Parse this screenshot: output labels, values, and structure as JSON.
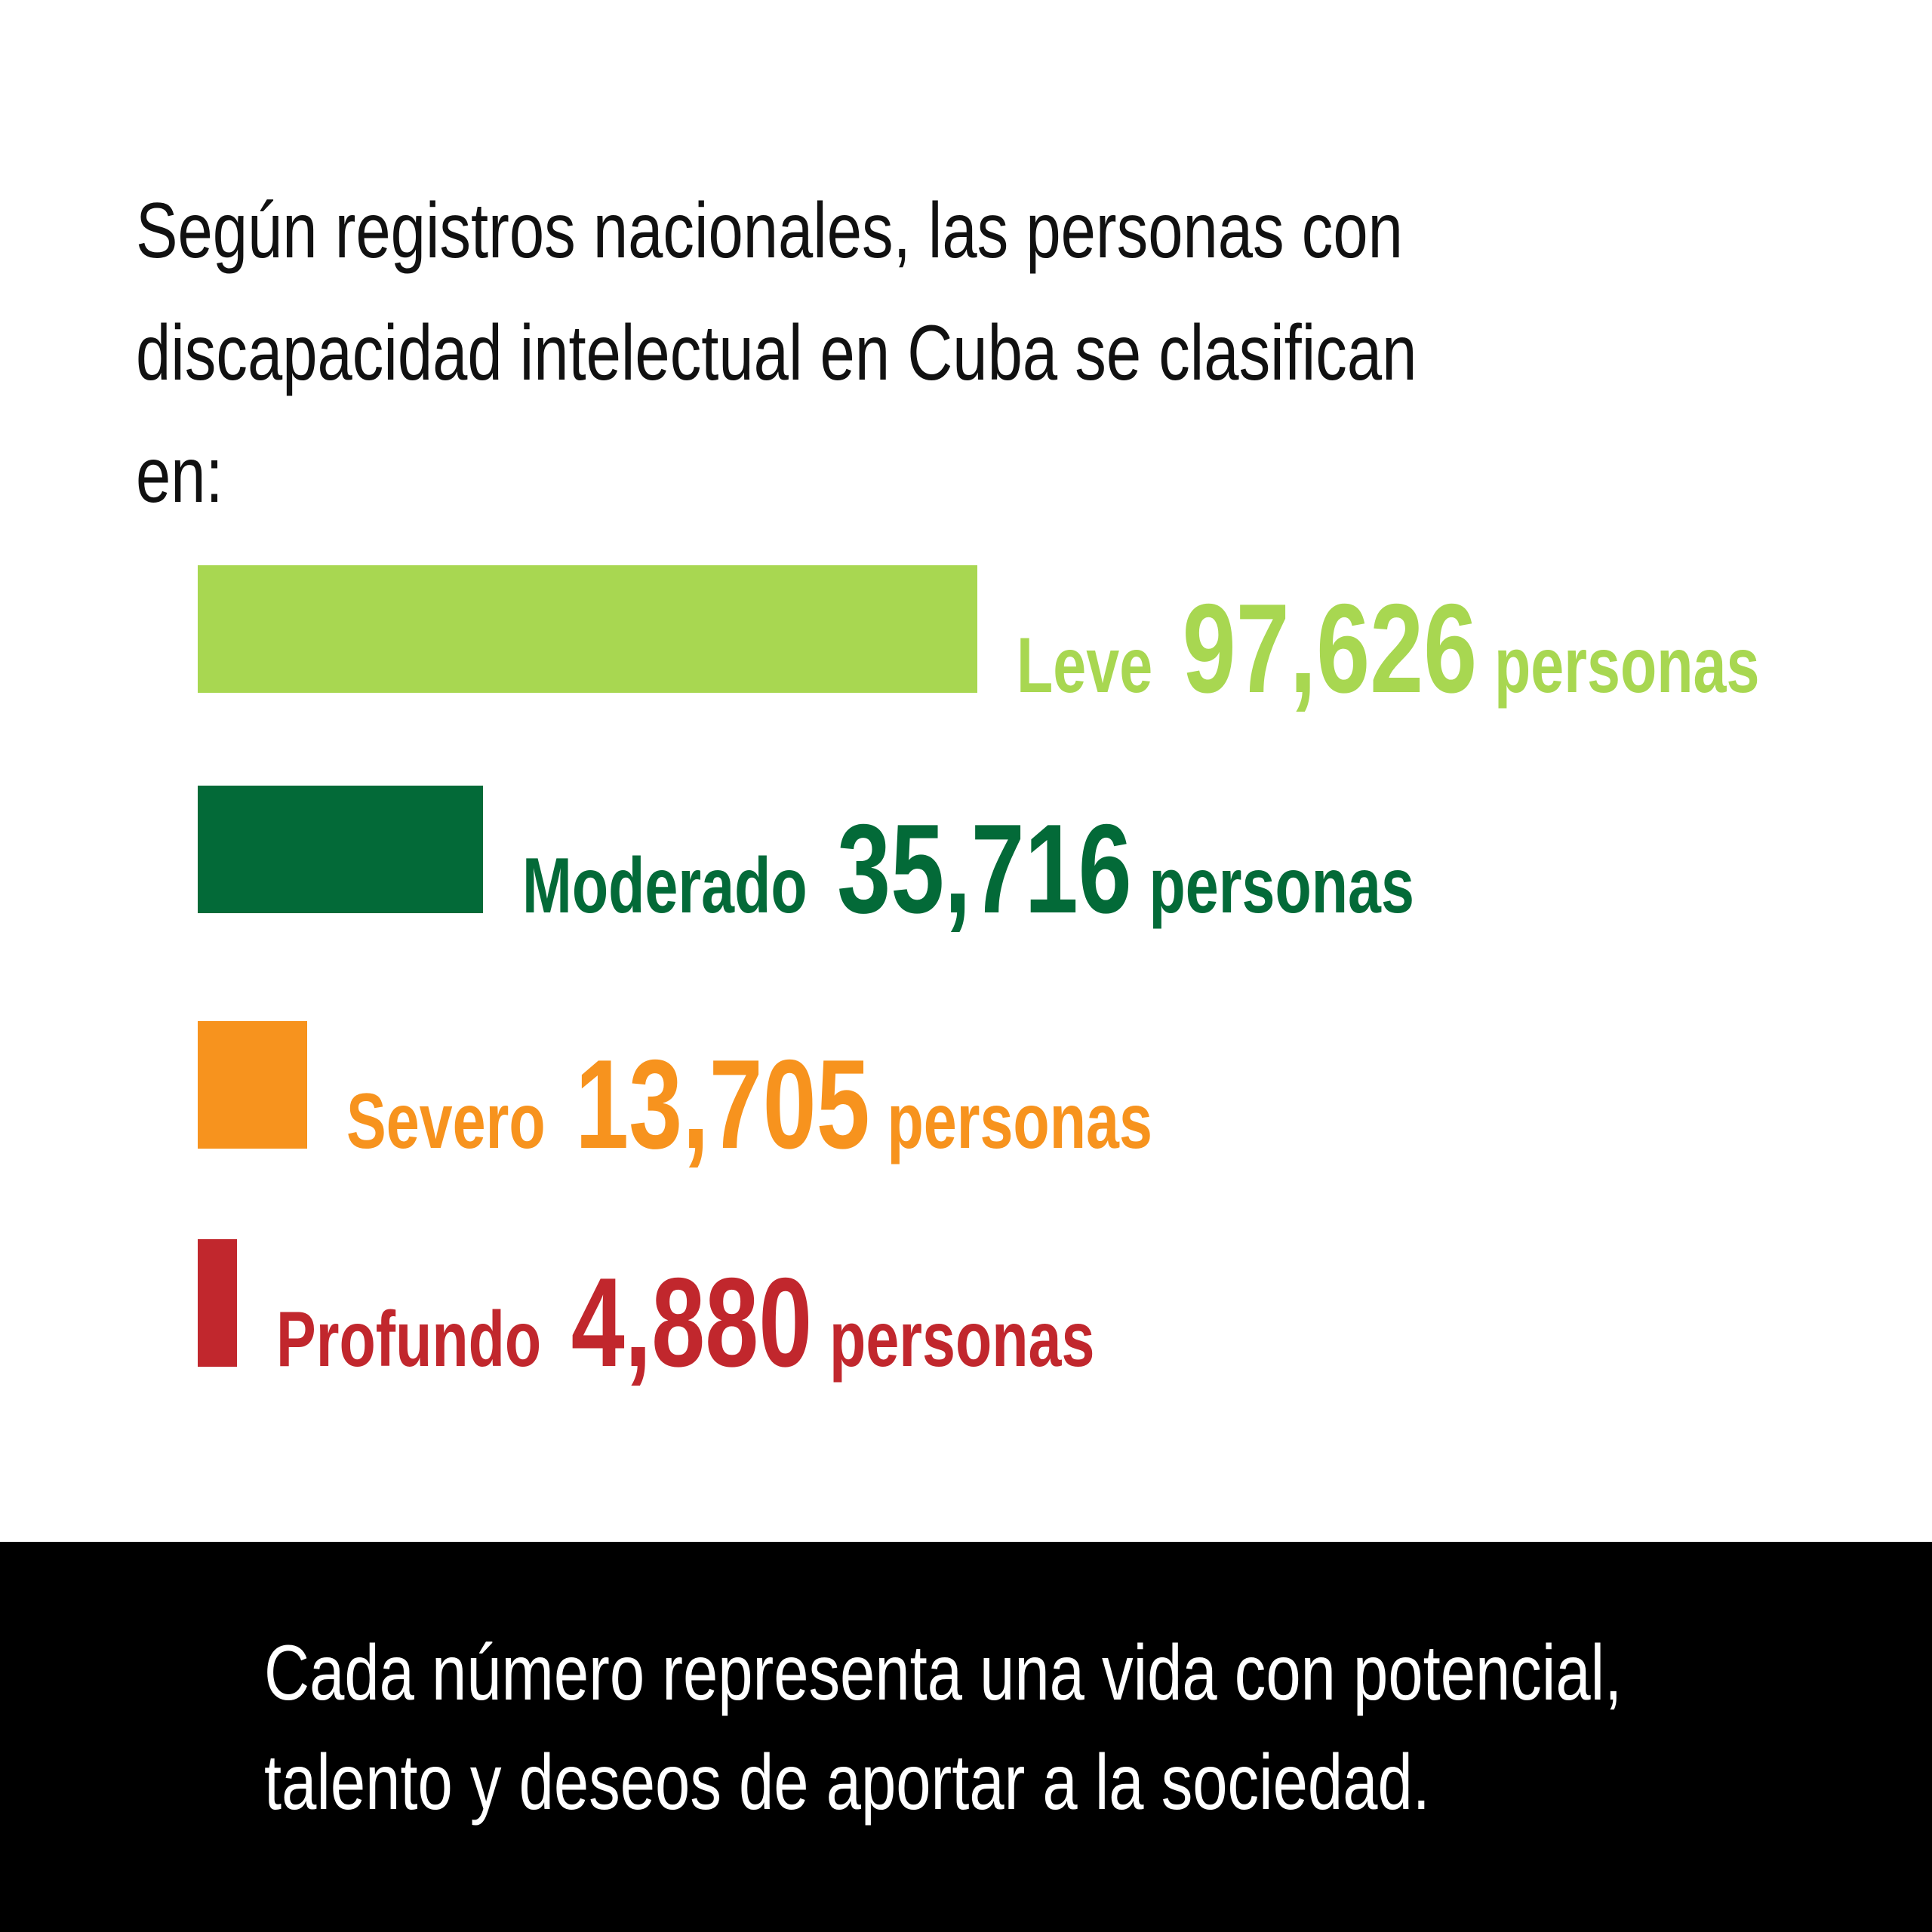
{
  "headline": "Según registros nacionales, las personas con discapacidad intelectual en Cuba se clasifican en:",
  "chart_data": {
    "type": "bar",
    "orientation": "horizontal",
    "title": "",
    "xlabel": "",
    "ylabel": "",
    "unit_label": "personas",
    "categories": [
      "Leve",
      "Moderado",
      "Severo",
      "Profundo"
    ],
    "values": [
      97626,
      35716,
      13705,
      4880
    ],
    "value_labels": [
      "97,626",
      "35,716",
      "13,705",
      "4,880"
    ],
    "colors": [
      "#a8d751",
      "#036a38",
      "#f7931e",
      "#c1272d"
    ],
    "grid": false,
    "legend": "none"
  },
  "footer": {
    "text": "Cada número representa una vida con potencial, talento y deseos de aportar a la sociedad."
  }
}
